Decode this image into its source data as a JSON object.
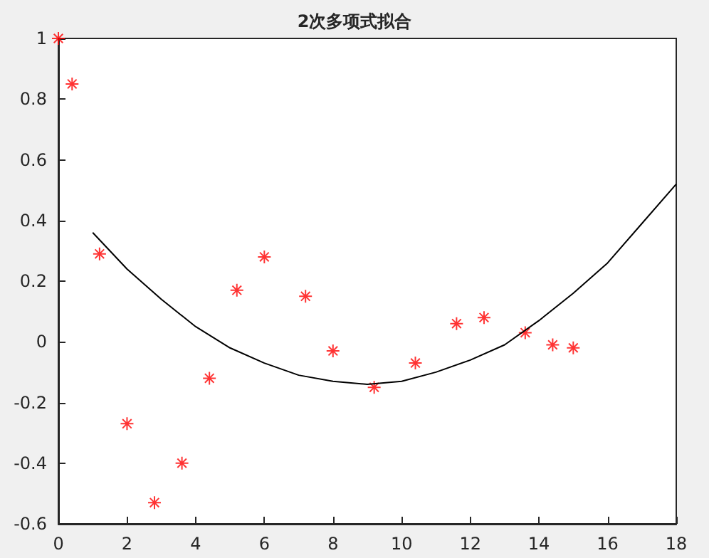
{
  "chart_data": {
    "type": "scatter",
    "title": "2次多项式拟合",
    "xlim": [
      0,
      18
    ],
    "xticks": [
      0,
      2,
      4,
      6,
      8,
      10,
      12,
      14,
      16,
      18
    ],
    "ylim": [
      -0.6,
      1
    ],
    "yticks": [
      -0.6,
      -0.4,
      -0.2,
      0,
      0.2,
      0.4,
      0.6,
      0.8,
      1
    ],
    "grid": false,
    "marker": "cross",
    "series": [
      {
        "color": "#ff0000",
        "x": [
          0,
          0.4,
          1.2,
          2.0,
          2.8,
          3.6,
          4.4,
          5.2,
          6.0,
          7.2,
          8.0,
          9.2,
          10.4,
          11.6,
          12.4,
          13.6,
          14.4,
          15.0
        ],
        "values": [
          1.0,
          0.85,
          0.29,
          -0.27,
          -0.53,
          -0.4,
          -0.12,
          0.17,
          0.28,
          0.15,
          -0.03,
          -0.15,
          -0.07,
          0.06,
          0.08,
          0.03,
          -0.01,
          -0.02
        ]
      },
      {
        "type": "line",
        "color": "#000000",
        "marker": "none",
        "x": [
          1,
          2,
          3,
          4,
          5,
          6,
          7,
          8,
          9,
          10,
          11,
          12,
          13,
          14,
          15,
          16,
          17,
          18
        ],
        "values": [
          0.36,
          0.24,
          0.14,
          0.05,
          -0.02,
          -0.07,
          -0.11,
          -0.13,
          -0.14,
          -0.13,
          -0.1,
          -0.06,
          -0.01,
          0.07,
          0.16,
          0.26,
          0.39,
          0.52
        ]
      }
    ]
  }
}
